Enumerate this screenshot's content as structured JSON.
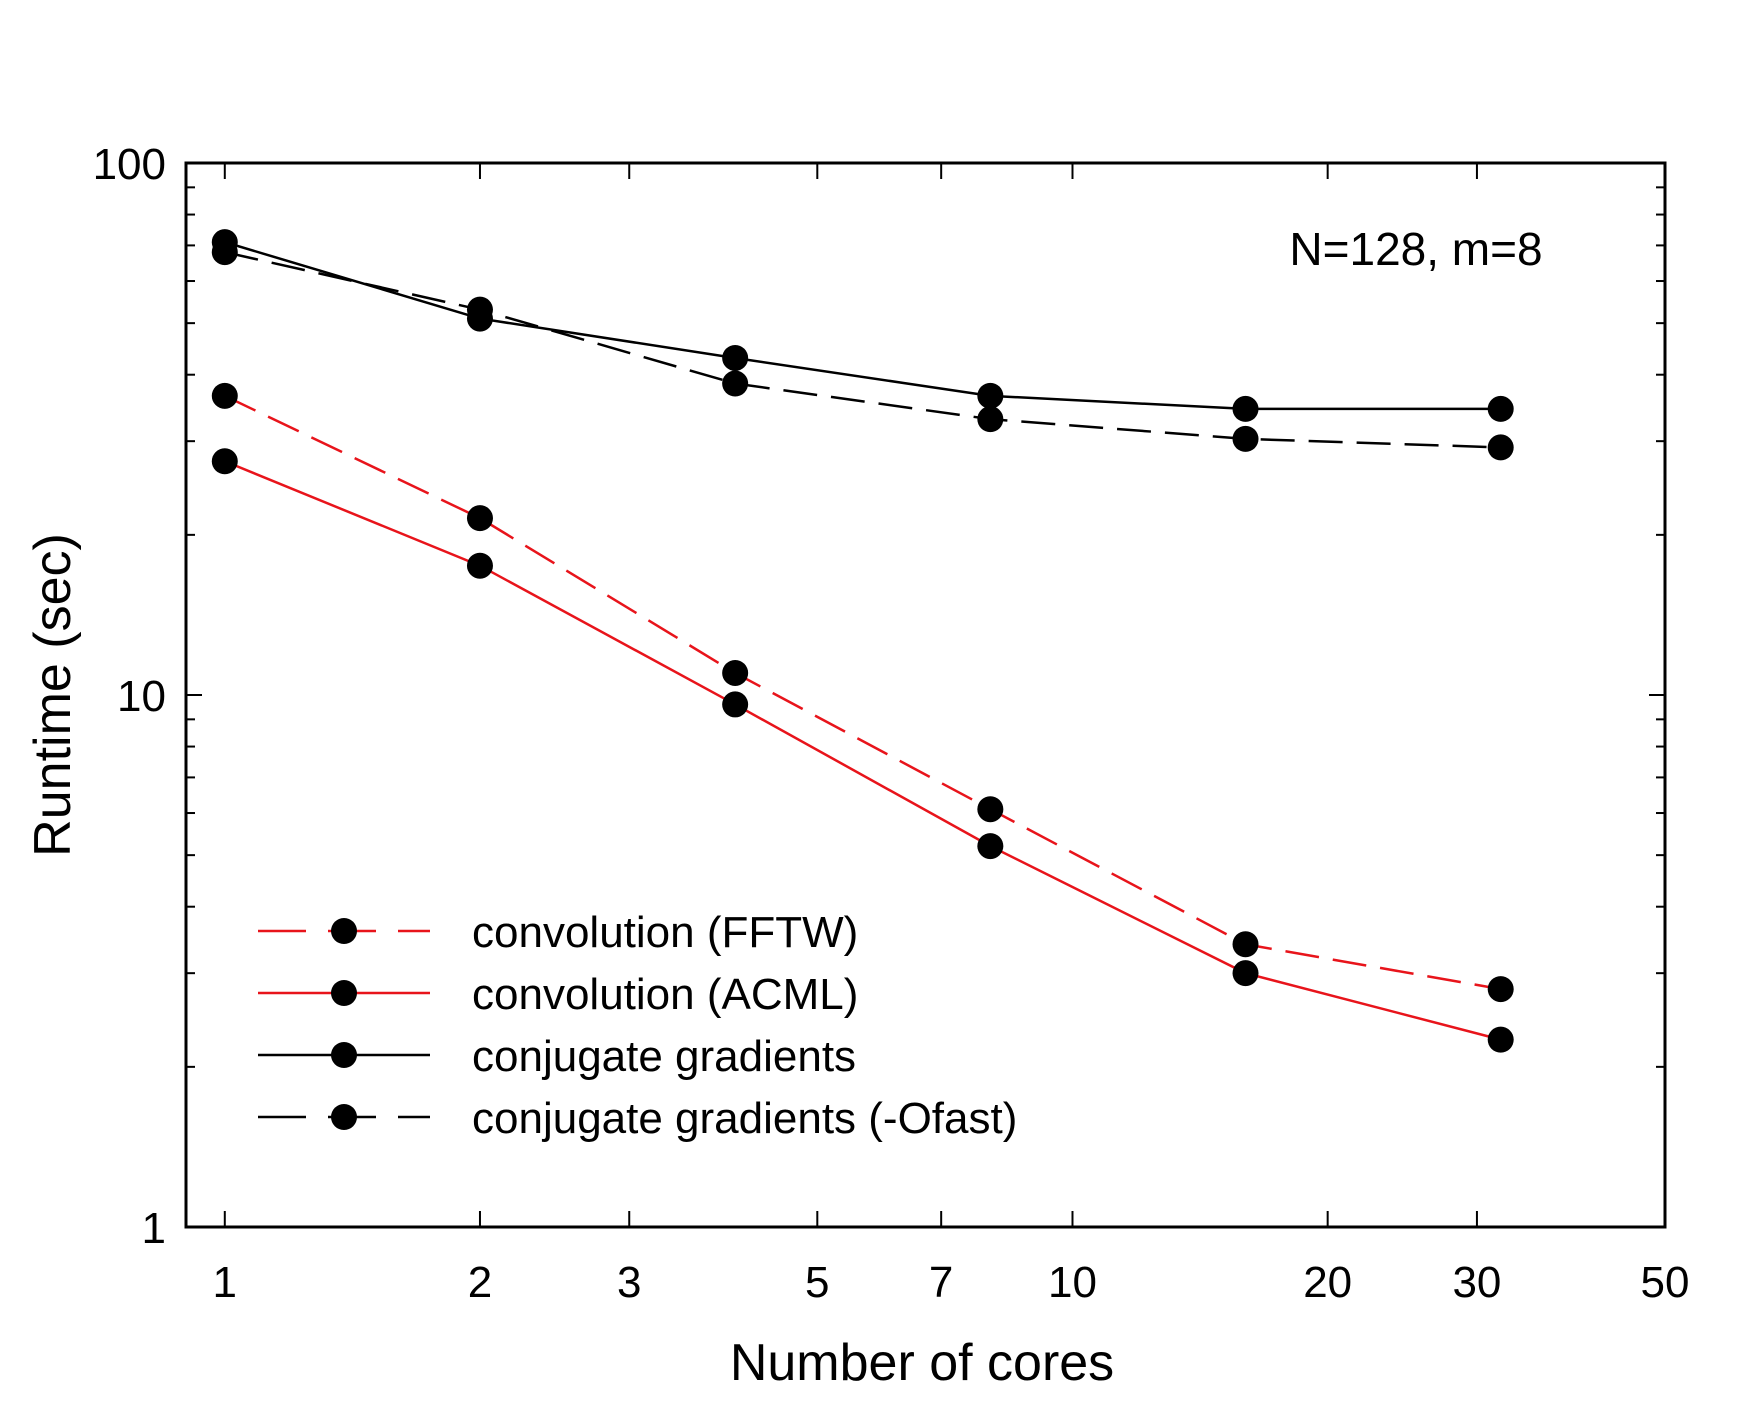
{
  "chart_data": {
    "type": "line",
    "title": "",
    "xlabel": "Number of cores",
    "ylabel": "Runtime (sec)",
    "xscale": "log",
    "yscale": "log",
    "xlim": [
      0.9,
      50
    ],
    "ylim": [
      1,
      100
    ],
    "grid": false,
    "legend_position": "bottom-left",
    "annotation": "N=128, m=8",
    "x_ticks": [
      {
        "value": 1,
        "label": "1"
      },
      {
        "value": 2,
        "label": "2"
      },
      {
        "value": 3,
        "label": "3"
      },
      {
        "value": 5,
        "label": "5"
      },
      {
        "value": 7,
        "label": "7"
      },
      {
        "value": 10,
        "label": "10"
      },
      {
        "value": 20,
        "label": "20"
      },
      {
        "value": 30,
        "label": "30"
      },
      {
        "value": 50,
        "label": "50"
      }
    ],
    "y_ticks": [
      {
        "value": 1,
        "label": "1"
      },
      {
        "value": 10,
        "label": "10"
      },
      {
        "value": 100,
        "label": "100"
      }
    ],
    "x": [
      1,
      2,
      4,
      8,
      16,
      32
    ],
    "series": [
      {
        "name": "convolution (FFTW)",
        "color": "#e8141b",
        "dash": "dashed",
        "values": [
          36.5,
          21.5,
          11,
          6.1,
          3.4,
          2.8
        ]
      },
      {
        "name": "convolution (ACML)",
        "color": "#e8141b",
        "dash": "solid",
        "values": [
          27.5,
          17.5,
          9.6,
          5.2,
          3.0,
          2.25
        ]
      },
      {
        "name": "conjugate gradients",
        "color": "#000000",
        "dash": "solid",
        "values": [
          71,
          51,
          43,
          36.5,
          34.5,
          34.5
        ]
      },
      {
        "name": "conjugate gradients (-Ofast)",
        "color": "#000000",
        "dash": "dashed",
        "values": [
          68,
          53,
          38.5,
          33,
          30.3,
          29.2
        ]
      }
    ]
  }
}
